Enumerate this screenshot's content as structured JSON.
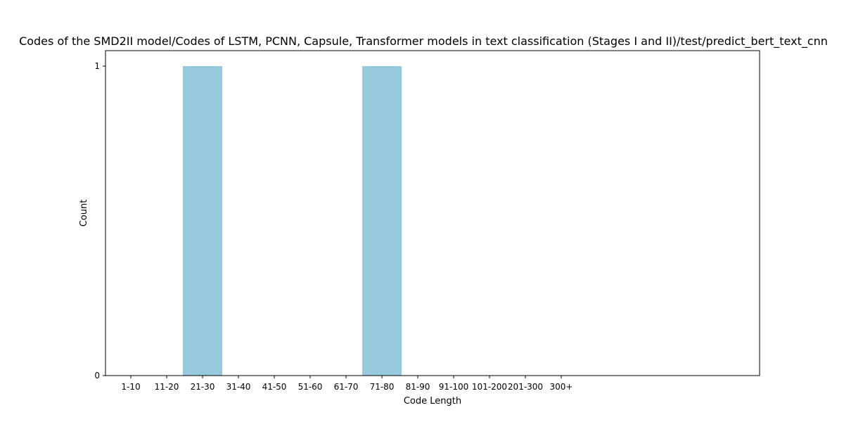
{
  "chart_data": {
    "type": "bar",
    "title": "Codes of the SMD2II model/Codes of LSTM, PCNN, Capsule, Transformer models in text classification (Stages I and II)/test/predict_bert_text_cnn",
    "xlabel": "Code Length",
    "ylabel": "Count",
    "categories": [
      "1-10",
      "11-20",
      "21-30",
      "31-40",
      "41-50",
      "51-60",
      "61-70",
      "71-80",
      "81-90",
      "91-100",
      "101-200",
      "201-300",
      "300+"
    ],
    "values": [
      0,
      0,
      1,
      0,
      0,
      0,
      0,
      1,
      0,
      0,
      0,
      0,
      0
    ],
    "ylim": [
      0,
      1
    ],
    "yticks": [
      0,
      1
    ],
    "bar_color": "#96c9dc",
    "grid": false,
    "legend": "none"
  }
}
